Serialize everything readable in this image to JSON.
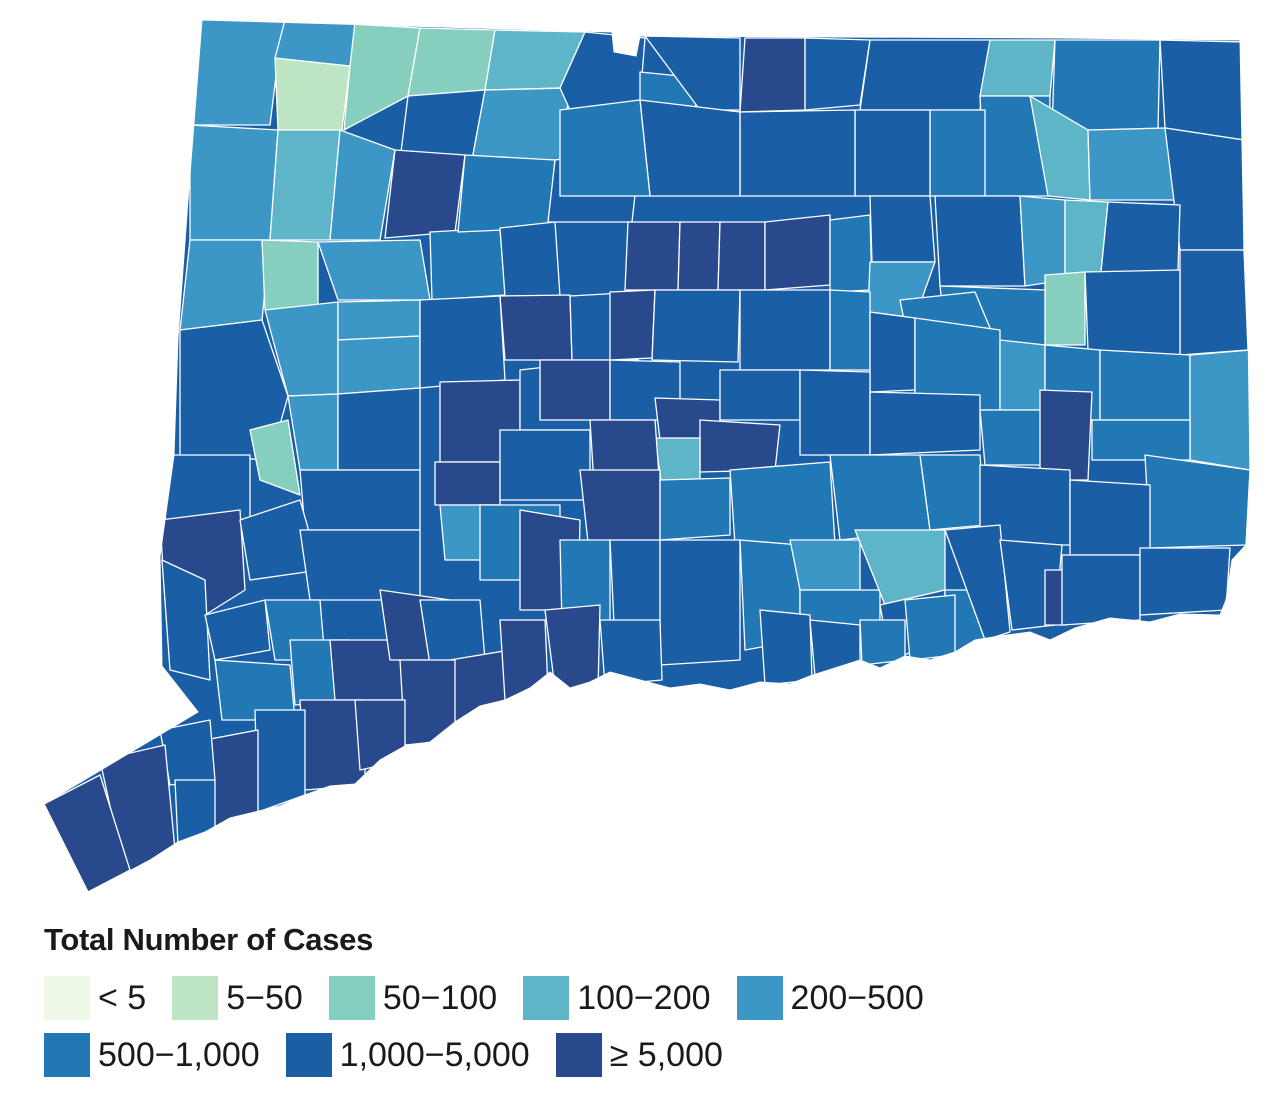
{
  "legend": {
    "title": "Total Number of Cases",
    "classes": [
      {
        "label": "< 5",
        "color": "#eef8e6"
      },
      {
        "label": "5−50",
        "color": "#bde5c4"
      },
      {
        "label": "50−100",
        "color": "#86cfbf"
      },
      {
        "label": "100−200",
        "color": "#5fb5c8"
      },
      {
        "label": "200−500",
        "color": "#3c97c6"
      },
      {
        "label": "500−1,000",
        "color": "#2278b5"
      },
      {
        "label": "1,000−5,000",
        "color": "#1a5fa6"
      },
      {
        "label": "≥ 5,000",
        "color": "#284a8c"
      }
    ]
  },
  "map": {
    "region": "Connecticut towns",
    "border_color": "#ffffff"
  }
}
